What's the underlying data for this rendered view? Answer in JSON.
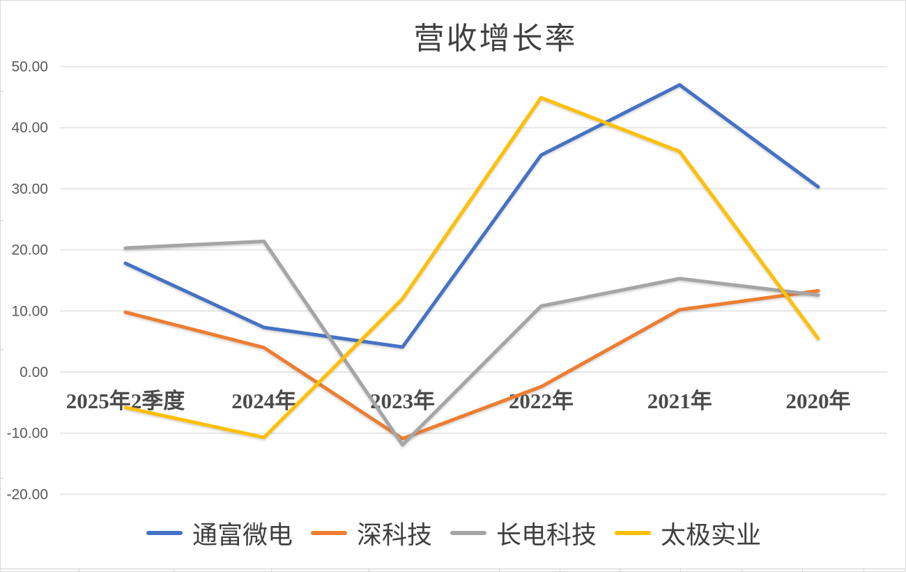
{
  "chart_data": {
    "type": "line",
    "title": "营收增长率",
    "categories": [
      "2025年2季度",
      "2024年",
      "2023年",
      "2022年",
      "2021年",
      "2020年"
    ],
    "series": [
      {
        "name": "通富微电",
        "color": "#4472C4",
        "values": [
          17.8,
          7.3,
          4.1,
          35.5,
          47.0,
          30.3
        ]
      },
      {
        "name": "深科技",
        "color": "#ED7D31",
        "values": [
          9.8,
          4.0,
          -10.9,
          -2.4,
          10.2,
          13.3
        ]
      },
      {
        "name": "长电科技",
        "color": "#A5A5A5",
        "values": [
          20.3,
          21.4,
          -11.9,
          10.8,
          15.3,
          12.6
        ]
      },
      {
        "name": "太极实业",
        "color": "#FFC000",
        "values": [
          -5.8,
          -10.7,
          12.0,
          44.9,
          36.1,
          5.5
        ]
      }
    ],
    "y_axis": {
      "min": -20,
      "max": 50,
      "step": 10,
      "tick_labels": [
        "50.00",
        "40.00",
        "30.00",
        "20.00",
        "10.00",
        "0.00",
        "-10.00",
        "-20.00"
      ],
      "tick_values": [
        50,
        40,
        30,
        20,
        10,
        0,
        -10,
        -20
      ]
    },
    "grid": true,
    "legend_position": "bottom"
  }
}
